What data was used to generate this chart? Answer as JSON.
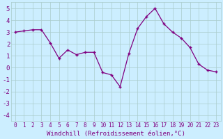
{
  "x": [
    0,
    1,
    2,
    3,
    4,
    5,
    6,
    7,
    8,
    9,
    10,
    11,
    12,
    13,
    14,
    15,
    16,
    17,
    18,
    19,
    20,
    21,
    22,
    23
  ],
  "y": [
    3.0,
    3.1,
    3.2,
    3.2,
    2.1,
    0.8,
    1.5,
    1.1,
    1.3,
    1.3,
    -0.4,
    -0.6,
    -1.6,
    1.2,
    3.3,
    4.3,
    5.0,
    3.7,
    3.0,
    2.5,
    1.7,
    0.3,
    -0.2,
    -0.35
  ],
  "line_color": "#800080",
  "marker": "+",
  "bg_color": "#cceeff",
  "grid_color": "#aacccc",
  "xlabel": "Windchill (Refroidissement éolien,°C)",
  "ylim": [
    -4.5,
    5.5
  ],
  "xlim": [
    -0.5,
    23.5
  ],
  "yticks": [
    -4,
    -3,
    -2,
    -1,
    0,
    1,
    2,
    3,
    4,
    5
  ],
  "xticks": [
    0,
    1,
    2,
    3,
    4,
    5,
    6,
    7,
    8,
    9,
    10,
    11,
    12,
    13,
    14,
    15,
    16,
    17,
    18,
    19,
    20,
    21,
    22,
    23
  ],
  "xlabel_fontsize": 6.5,
  "tick_fontsize": 5.5,
  "ytick_fontsize": 6.5,
  "linewidth": 0.9,
  "markersize": 3.5,
  "markeredgewidth": 1.0
}
